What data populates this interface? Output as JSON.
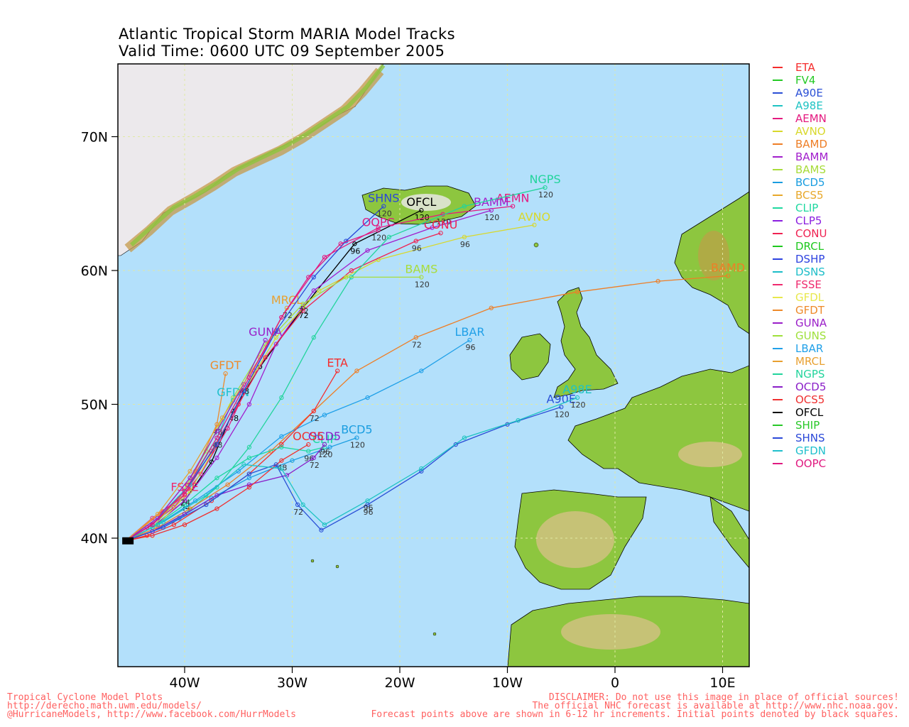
{
  "title_line1": "Atlantic Tropical Storm MARIA Model Tracks",
  "title_line2": "Valid Time: 0600 UTC 09 September 2005",
  "axes": {
    "lat_labels": [
      "70N",
      "60N",
      "50N",
      "40N"
    ],
    "lon_labels": [
      "40W",
      "30W",
      "20W",
      "10W",
      "0",
      "10E"
    ]
  },
  "colors": {
    "ocean": "#b3e0fb",
    "land": "#8dc63f",
    "ice": "#ece9ec",
    "grid": "#e0e9a2"
  },
  "legend": [
    {
      "name": "ETA",
      "color": "#f52c2c"
    },
    {
      "name": "FV4",
      "color": "#24c924"
    },
    {
      "name": "A90E",
      "color": "#2a4fd6"
    },
    {
      "name": "A98E",
      "color": "#1fc3c3"
    },
    {
      "name": "AEMN",
      "color": "#e4197f"
    },
    {
      "name": "AVNO",
      "color": "#d8d82b"
    },
    {
      "name": "BAMD",
      "color": "#ee7e26"
    },
    {
      "name": "BAMM",
      "color": "#a21fcc"
    },
    {
      "name": "BAMS",
      "color": "#a8dc3a"
    },
    {
      "name": "BCD5",
      "color": "#1a9de0"
    },
    {
      "name": "BCS5",
      "color": "#e8a82a"
    },
    {
      "name": "CLIP",
      "color": "#1fd8a0"
    },
    {
      "name": "CLP5",
      "color": "#8a1ee0"
    },
    {
      "name": "CONU",
      "color": "#ef2252"
    },
    {
      "name": "DRCL",
      "color": "#1ec81e"
    },
    {
      "name": "DSHP",
      "color": "#2d42e0"
    },
    {
      "name": "DSNS",
      "color": "#1cbdc8"
    },
    {
      "name": "FSSE",
      "color": "#ef2a6e"
    },
    {
      "name": "GFDL",
      "color": "#e8e84c"
    },
    {
      "name": "GFDT",
      "color": "#ee8a2a"
    },
    {
      "name": "GUNA",
      "color": "#9a1ec8"
    },
    {
      "name": "GUNS",
      "color": "#9ee03a"
    },
    {
      "name": "LBAR",
      "color": "#20a0e8"
    },
    {
      "name": "MRCL",
      "color": "#e8a030"
    },
    {
      "name": "NGPS",
      "color": "#22d49c"
    },
    {
      "name": "OCD5",
      "color": "#8a1ec8"
    },
    {
      "name": "OCS5",
      "color": "#ef3030"
    },
    {
      "name": "OFCL",
      "color": "#000000"
    },
    {
      "name": "SHIP",
      "color": "#28c828"
    },
    {
      "name": "SHNS",
      "color": "#2a48d8"
    },
    {
      "name": "GFDN",
      "color": "#20c0cc"
    },
    {
      "name": "OOPC",
      "color": "#e01a80"
    }
  ],
  "tracks": [
    {
      "name": "OFCL",
      "color": "#000000",
      "label": "OFCL",
      "pts": [
        [
          -45.5,
          39.8
        ],
        [
          -43,
          40.8
        ],
        [
          -40,
          42.8
        ],
        [
          -37.5,
          45.7
        ],
        [
          -35.5,
          49.5
        ],
        [
          -33,
          52.8
        ],
        [
          -29,
          57.2
        ],
        [
          -24.2,
          62
        ],
        [
          -18,
          64.5
        ]
      ],
      "ticks": [
        [
          "24",
          2
        ],
        [
          "48",
          4
        ],
        [
          "72",
          6
        ],
        [
          "96",
          7
        ],
        [
          "120",
          8
        ]
      ]
    },
    {
      "name": "AEMN",
      "color": "#e4197f",
      "label": "AEMN",
      "pts": [
        [
          -45.5,
          39.8
        ],
        [
          -43.5,
          40.8
        ],
        [
          -41,
          42.3
        ],
        [
          -38.5,
          44.8
        ],
        [
          -36,
          48.2
        ],
        [
          -33.5,
          52.5
        ],
        [
          -31,
          56.5
        ],
        [
          -27,
          61
        ],
        [
          -22,
          63.2
        ],
        [
          -16,
          64.2
        ],
        [
          -9.5,
          64.8
        ]
      ],
      "ticks": [
        [
          "120",
          9
        ]
      ]
    },
    {
      "name": "BAMM",
      "color": "#a21fcc",
      "label": "BAMM",
      "pts": [
        [
          -45.5,
          39.8
        ],
        [
          -43,
          40.8
        ],
        [
          -40,
          42.8
        ],
        [
          -37,
          46
        ],
        [
          -34,
          50
        ],
        [
          -31.5,
          54.5
        ],
        [
          -28,
          58.5
        ],
        [
          -23,
          61.5
        ],
        [
          -17,
          63.2
        ],
        [
          -11.5,
          64.5
        ]
      ],
      "ticks": [
        [
          "120",
          9
        ]
      ]
    },
    {
      "name": "AVNO",
      "color": "#d8d82b",
      "label": "AVNO",
      "pts": [
        [
          -45.5,
          39.8
        ],
        [
          -42.5,
          41
        ],
        [
          -39.5,
          43.5
        ],
        [
          -37,
          47
        ],
        [
          -34.5,
          51
        ],
        [
          -31.5,
          55
        ],
        [
          -27.5,
          58.5
        ],
        [
          -22,
          60.8
        ],
        [
          -14,
          62.5
        ],
        [
          -7.5,
          63.4
        ]
      ],
      "ticks": [
        [
          "96",
          8
        ]
      ]
    },
    {
      "name": "CONU",
      "color": "#ef2252",
      "label": "CONU",
      "pts": [
        [
          -45.5,
          39.8
        ],
        [
          -43,
          41
        ],
        [
          -40,
          43.3
        ],
        [
          -37.5,
          46.5
        ],
        [
          -35,
          50
        ],
        [
          -32.5,
          53.5
        ],
        [
          -29,
          57
        ],
        [
          -24.5,
          60
        ],
        [
          -18.5,
          62.2
        ],
        [
          -16.2,
          62.8
        ]
      ],
      "ticks": [
        [
          "96",
          8
        ]
      ]
    },
    {
      "name": "NGPS",
      "color": "#22d49c",
      "label": "NGPS",
      "pts": [
        [
          -45.5,
          39.8
        ],
        [
          -43,
          40.5
        ],
        [
          -40,
          41.8
        ],
        [
          -37,
          43.8
        ],
        [
          -34,
          46.8
        ],
        [
          -31,
          50.5
        ],
        [
          -28,
          55
        ],
        [
          -24.5,
          59.5
        ],
        [
          -21,
          62.5
        ],
        [
          -14,
          64.8
        ],
        [
          -6.5,
          66.2
        ]
      ],
      "ticks": [
        [
          "120",
          10
        ]
      ]
    },
    {
      "name": "BAMS",
      "color": "#a8dc3a",
      "label": "BAMS",
      "pts": [
        [
          -45.5,
          39.8
        ],
        [
          -43,
          40.8
        ],
        [
          -40.5,
          43
        ],
        [
          -38,
          46.5
        ],
        [
          -35.5,
          50.5
        ],
        [
          -32.5,
          54.5
        ],
        [
          -29,
          57.5
        ],
        [
          -25,
          59.5
        ],
        [
          -18,
          59.5
        ]
      ],
      "ticks": [
        [
          "72",
          6
        ],
        [
          "120",
          8
        ]
      ]
    },
    {
      "name": "BAMD",
      "color": "#ee7e26",
      "label": "BAMD",
      "pts": [
        [
          -45.5,
          39.8
        ],
        [
          -42.5,
          40.8
        ],
        [
          -39.5,
          42.2
        ],
        [
          -36,
          44
        ],
        [
          -32,
          46.5
        ],
        [
          -28,
          49.5
        ],
        [
          -24,
          52.5
        ],
        [
          -18.5,
          55
        ],
        [
          -11.5,
          57.2
        ],
        [
          -3.5,
          58.4
        ],
        [
          4,
          59.2
        ],
        [
          10.5,
          59.6
        ]
      ],
      "ticks": [
        [
          "72",
          7
        ]
      ]
    },
    {
      "name": "LBAR",
      "color": "#20a0e8",
      "label": "LBAR",
      "pts": [
        [
          -45.5,
          39.8
        ],
        [
          -42.5,
          41
        ],
        [
          -39,
          42.8
        ],
        [
          -35,
          45
        ],
        [
          -31,
          47.6
        ],
        [
          -27,
          49.2
        ],
        [
          -23,
          50.5
        ],
        [
          -18,
          52.5
        ],
        [
          -13.5,
          54.8
        ]
      ],
      "ticks": [
        [
          "96",
          8
        ]
      ]
    },
    {
      "name": "ETA",
      "color": "#f52c2c",
      "label": "ETA",
      "pts": [
        [
          -45.5,
          39.8
        ],
        [
          -43.5,
          40.2
        ],
        [
          -41,
          41
        ],
        [
          -37.5,
          42.8
        ],
        [
          -34,
          44.8
        ],
        [
          -31,
          47
        ],
        [
          -28,
          49.5
        ],
        [
          -25.8,
          52.5
        ]
      ],
      "ticks": [
        [
          "72",
          6
        ]
      ]
    },
    {
      "name": "BCD5",
      "color": "#1a9de0",
      "label": "BCD5",
      "pts": [
        [
          -45.5,
          39.8
        ],
        [
          -43,
          40.5
        ],
        [
          -40.5,
          41.5
        ],
        [
          -37.5,
          43
        ],
        [
          -34,
          44.5
        ],
        [
          -30,
          45.8
        ],
        [
          -26.5,
          46.8
        ],
        [
          -24,
          47.5
        ]
      ],
      "ticks": [
        [
          "120",
          7
        ]
      ]
    },
    {
      "name": "CLIP",
      "color": "#1fd8a0",
      "label": "CLIP",
      "pts": [
        [
          -45.5,
          39.8
        ],
        [
          -43,
          40.8
        ],
        [
          -40,
          42.5
        ],
        [
          -37,
          44.5
        ],
        [
          -34,
          46
        ],
        [
          -31,
          46.8
        ],
        [
          -28.5,
          46.5
        ],
        [
          -27,
          46.8
        ]
      ],
      "ticks": [
        [
          "96",
          6
        ],
        [
          "120",
          7
        ]
      ]
    },
    {
      "name": "OCD5",
      "color": "#8a1ec8",
      "label": "OCD5",
      "pts": [
        [
          -45.5,
          39.8
        ],
        [
          -43,
          40.5
        ],
        [
          -40,
          41.8
        ],
        [
          -37,
          43.2
        ],
        [
          -34,
          44
        ],
        [
          -30.5,
          44.7
        ],
        [
          -28,
          46
        ],
        [
          -27,
          47
        ]
      ],
      "ticks": [
        [
          "72",
          6
        ],
        [
          "96",
          7
        ]
      ]
    },
    {
      "name": "OCS5",
      "color": "#ef3030",
      "label": "OCS5",
      "pts": [
        [
          -45.5,
          39.8
        ],
        [
          -43,
          40.2
        ],
        [
          -40,
          41
        ],
        [
          -37,
          42.2
        ],
        [
          -34,
          43.8
        ],
        [
          -31,
          45.8
        ],
        [
          -28.5,
          47
        ]
      ],
      "ticks": [
        [
          "48",
          5
        ]
      ]
    },
    {
      "name": "A90E",
      "color": "#2a4fd6",
      "label": "A90E",
      "pts": [
        [
          -45.5,
          39.8
        ],
        [
          -42,
          40.8
        ],
        [
          -38,
          42.5
        ],
        [
          -34,
          44.8
        ],
        [
          -31.5,
          45.5
        ],
        [
          -29.5,
          42.5
        ],
        [
          -27.3,
          40.6
        ],
        [
          -23,
          42.5
        ],
        [
          -18,
          45
        ],
        [
          -14.8,
          47
        ],
        [
          -10,
          48.5
        ],
        [
          -5,
          49.8
        ]
      ],
      "ticks": [
        [
          "72",
          5
        ],
        [
          "96",
          7
        ],
        [
          "120",
          11
        ]
      ]
    },
    {
      "name": "A98E",
      "color": "#1fc3c3",
      "label": "A98E",
      "pts": [
        [
          -45.5,
          39.8
        ],
        [
          -42,
          41.2
        ],
        [
          -38,
          43.2
        ],
        [
          -34.5,
          45.5
        ],
        [
          -31,
          45.2
        ],
        [
          -29,
          42.5
        ],
        [
          -27,
          41
        ],
        [
          -23,
          42.8
        ],
        [
          -18,
          45.2
        ],
        [
          -14,
          47.5
        ],
        [
          -9,
          48.8
        ],
        [
          -3.5,
          50.5
        ]
      ],
      "ticks": [
        [
          "96",
          7
        ],
        [
          "120",
          11
        ]
      ]
    },
    {
      "name": "GFDT",
      "color": "#ee8a2a",
      "label": "GFDT",
      "pts": [
        [
          -45.5,
          39.8
        ],
        [
          -42,
          42
        ],
        [
          -39,
          45
        ],
        [
          -37,
          48.5
        ],
        [
          -36.2,
          52.3
        ]
      ],
      "ticks": [
        [
          "48",
          3
        ]
      ]
    },
    {
      "name": "GFDN",
      "color": "#20c0cc",
      "label": "GFDN",
      "pts": [
        [
          -45.5,
          39.8
        ],
        [
          -42.5,
          41.5
        ],
        [
          -39.5,
          44
        ],
        [
          -37,
          47.5
        ],
        [
          -35.5,
          50.3
        ]
      ],
      "ticks": [
        [
          "48",
          3
        ]
      ]
    },
    {
      "name": "FSSE",
      "color": "#ef2a6e",
      "label": "FSSE",
      "pts": [
        [
          -45.5,
          39.8
        ],
        [
          -43,
          41.5
        ],
        [
          -40,
          43.2
        ]
      ],
      "ticks": [
        [
          "24",
          2
        ]
      ]
    },
    {
      "name": "GUNA",
      "color": "#9a1ec8",
      "label": "GUNA",
      "pts": [
        [
          -45.5,
          39.8
        ],
        [
          -42.5,
          41.5
        ],
        [
          -39.5,
          44.5
        ],
        [
          -37,
          48
        ],
        [
          -34.5,
          51.5
        ],
        [
          -32.5,
          54.8
        ]
      ],
      "ticks": [
        [
          "48",
          4
        ]
      ]
    },
    {
      "name": "MRCL",
      "color": "#e8a030",
      "label": "MRCL",
      "pts": [
        [
          -45.5,
          39.8
        ],
        [
          -42.5,
          41.8
        ],
        [
          -39.5,
          45
        ],
        [
          -36.5,
          49
        ],
        [
          -33,
          53.5
        ],
        [
          -30.5,
          57.2
        ]
      ],
      "ticks": [
        [
          "72",
          5
        ]
      ]
    },
    {
      "name": "SHNS",
      "color": "#2a48d8",
      "label": "SHNS",
      "pts": [
        [
          -45.5,
          39.8
        ],
        [
          -43,
          41
        ],
        [
          -40,
          43.5
        ],
        [
          -37,
          47
        ],
        [
          -34.5,
          51
        ],
        [
          -31.5,
          55.5
        ],
        [
          -28,
          59.5
        ],
        [
          -25,
          62.2
        ],
        [
          -21.5,
          64.8
        ]
      ],
      "ticks": [
        [
          "120",
          8
        ]
      ]
    },
    {
      "name": "OOPC",
      "color": "#e01a80",
      "label": "OOPC",
      "pts": [
        [
          -45.5,
          39.8
        ],
        [
          -43,
          41
        ],
        [
          -40,
          43.5
        ],
        [
          -37,
          47.5
        ],
        [
          -34,
          52
        ],
        [
          -31,
          56.5
        ],
        [
          -28.5,
          59.5
        ],
        [
          -25.5,
          62
        ],
        [
          -22,
          63
        ]
      ],
      "ticks": [
        [
          "120",
          8
        ]
      ]
    }
  ],
  "footer": {
    "left_line1": "Tropical Cyclone Model Plots",
    "left_line2": "http://derecho.math.uwm.edu/models/",
    "left_line3": "@HurricaneModels, http://www.facebook.com/HurrModels",
    "right_line1": "DISCLAIMER: Do not use this image in place of official sources!",
    "right_line2": "The official NHC forecast is available at http://www.nhc.noaa.gov.",
    "right_line3": "Forecast points above are shown in 6-12 hr increments. Initial points denoted by black squares."
  }
}
